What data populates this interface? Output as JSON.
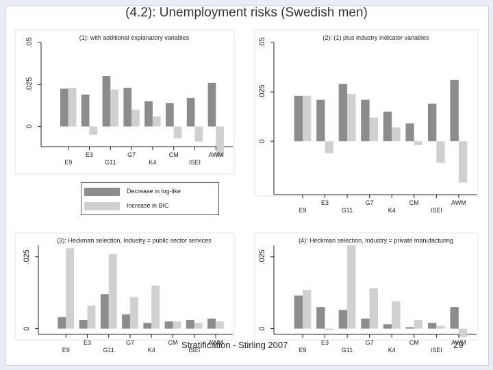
{
  "slide": {
    "title": "(4.2): Unemployment risks (Swedish men)",
    "footer": "Stratification - Stirling 2007",
    "page_number": "29"
  },
  "colors": {
    "decrease": "#8c8c8c",
    "increase": "#d0d0d0",
    "axis": "#222222"
  },
  "legend": {
    "decrease_label": "Decrease in log-like",
    "increase_label": "Increase in BIC"
  },
  "chart_data": [
    {
      "type": "bar",
      "title": "(1): with additional explanatory variables",
      "categories": [
        "E9",
        "E3",
        "G11",
        "G7",
        "K4",
        "CM",
        "ISEI",
        "AWM"
      ],
      "ylim": [
        -0.012,
        0.05
      ],
      "yticks": [
        0,
        0.025,
        0.05
      ],
      "ytick_labels": [
        "0",
        ".025",
        ".05"
      ],
      "series": [
        {
          "name": "Decrease in log-like",
          "values": [
            0.0225,
            0.019,
            0.03,
            0.023,
            0.015,
            0.014,
            0.017,
            0.026
          ]
        },
        {
          "name": "Increase in BIC",
          "values": [
            0.023,
            -0.005,
            0.022,
            0.01,
            0.006,
            -0.007,
            -0.009,
            -0.018
          ]
        }
      ]
    },
    {
      "type": "bar",
      "title": "(2): (1) plus industry indicator variables",
      "categories": [
        "E9",
        "E3",
        "G11",
        "G7",
        "K4",
        "CM",
        "ISEI",
        "AWM"
      ],
      "ylim": [
        -0.027,
        0.05
      ],
      "yticks": [
        0,
        0.025,
        0.05
      ],
      "ytick_labels": [
        "0",
        ".025",
        ".05"
      ],
      "series": [
        {
          "name": "Decrease in log-like",
          "values": [
            0.023,
            0.021,
            0.029,
            0.021,
            0.015,
            0.009,
            0.019,
            0.031
          ]
        },
        {
          "name": "Increase in BIC",
          "values": [
            0.023,
            -0.006,
            0.024,
            0.012,
            0.007,
            -0.002,
            -0.011,
            -0.021
          ]
        }
      ]
    },
    {
      "type": "bar",
      "title": "(3): Heckman selection, Industry = public sector services",
      "categories": [
        "E9",
        "E3",
        "G11",
        "G7",
        "K4",
        "CM",
        "ISEI",
        "AWM"
      ],
      "ylim": [
        -0.002,
        0.029
      ],
      "yticks": [
        0,
        0.025
      ],
      "ytick_labels": [
        "0",
        ".025"
      ],
      "series": [
        {
          "name": "Decrease in log-like",
          "values": [
            0.004,
            0.003,
            0.012,
            0.005,
            0.002,
            0.0025,
            0.003,
            0.0035
          ]
        },
        {
          "name": "Increase in BIC",
          "values": [
            0.028,
            0.008,
            0.026,
            0.011,
            0.015,
            0.0025,
            0.002,
            0.0025
          ]
        }
      ]
    },
    {
      "type": "bar",
      "title": "(4): Heckman selection, Industry = private manufacturing",
      "categories": [
        "E9",
        "E3",
        "G11",
        "G7",
        "K4",
        "CM",
        "ISEI",
        "AWM"
      ],
      "ylim": [
        -0.002,
        0.029
      ],
      "yticks": [
        0,
        0.025
      ],
      "ytick_labels": [
        "0",
        ".025"
      ],
      "series": [
        {
          "name": "Decrease in log-like",
          "values": [
            0.0115,
            0.0075,
            0.0065,
            0.0035,
            0.0015,
            0.0005,
            0.002,
            0.0075
          ]
        },
        {
          "name": "Increase in BIC",
          "values": [
            0.0135,
            -0.0005,
            0.029,
            0.014,
            0.0095,
            0.003,
            0.001,
            -0.003
          ]
        }
      ]
    }
  ]
}
